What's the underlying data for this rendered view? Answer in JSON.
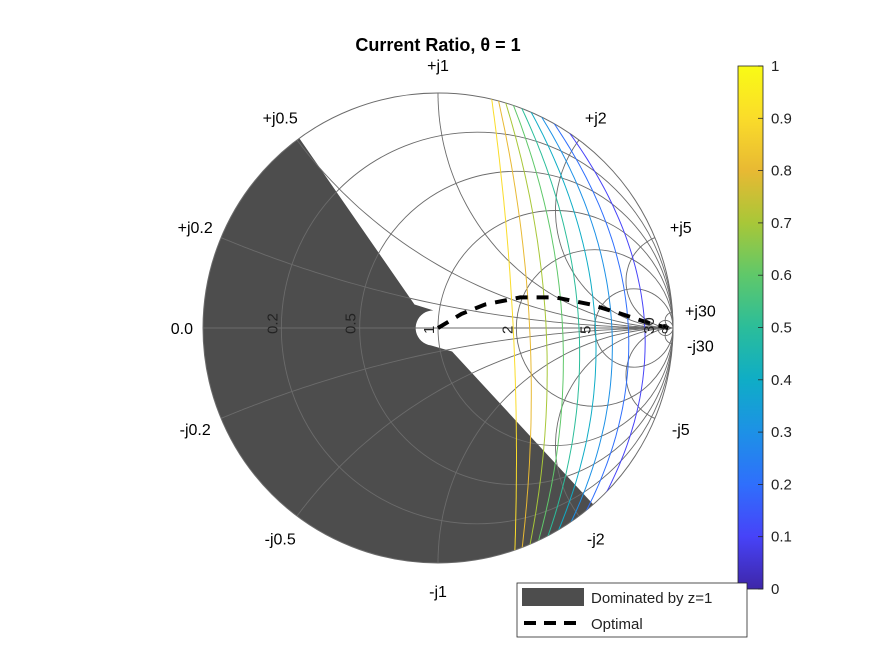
{
  "chart_data": {
    "type": "smith-chart-contour",
    "title": "Current Ratio, θ = 1",
    "resistance_labels": [
      "0.0",
      "0.2",
      "0.5",
      "1",
      "2",
      "5",
      "30",
      "∞"
    ],
    "reactance_labels": [
      "+j0.2",
      "+j0.5",
      "+j1",
      "+j2",
      "+j5",
      "+j30",
      "-j0.2",
      "-j0.5",
      "-j1",
      "-j2",
      "-j5",
      "-j30"
    ],
    "resistance_circles": [
      0.2,
      0.5,
      1,
      2,
      5,
      30
    ],
    "reactance_arcs": [
      0.2,
      0.5,
      1,
      2,
      5,
      30
    ],
    "colorbar": {
      "min": 0,
      "max": 1,
      "ticks": [
        "0",
        "0.1",
        "0.2",
        "0.3",
        "0.4",
        "0.5",
        "0.6",
        "0.7",
        "0.8",
        "0.9",
        "1"
      ],
      "colormap": [
        "#3e26a8",
        "#4743f8",
        "#2f6ffc",
        "#1d91e6",
        "#0fadc6",
        "#2bbd9a",
        "#5fc86a",
        "#a8c738",
        "#e8b933",
        "#fadc2a",
        "#f9fb15"
      ]
    },
    "contour_levels": [
      0.1,
      0.2,
      0.3,
      0.4,
      0.5,
      0.6,
      0.7,
      0.8,
      0.9
    ],
    "dominated_region": {
      "label": "Dominated by z=1",
      "color": "#4d4d4d"
    },
    "optimal_curve": {
      "label": "Optimal",
      "points_gamma": [
        [
          0.0,
          0.0
        ],
        [
          0.1,
          0.06
        ],
        [
          0.2,
          0.1
        ],
        [
          0.35,
          0.13
        ],
        [
          0.5,
          0.13
        ],
        [
          0.65,
          0.1
        ],
        [
          0.78,
          0.06
        ],
        [
          0.9,
          0.02
        ],
        [
          0.98,
          0.0
        ]
      ]
    },
    "legend": {
      "position": "bottom-right",
      "entries": [
        "Dominated by z=1",
        "Optimal"
      ]
    }
  }
}
